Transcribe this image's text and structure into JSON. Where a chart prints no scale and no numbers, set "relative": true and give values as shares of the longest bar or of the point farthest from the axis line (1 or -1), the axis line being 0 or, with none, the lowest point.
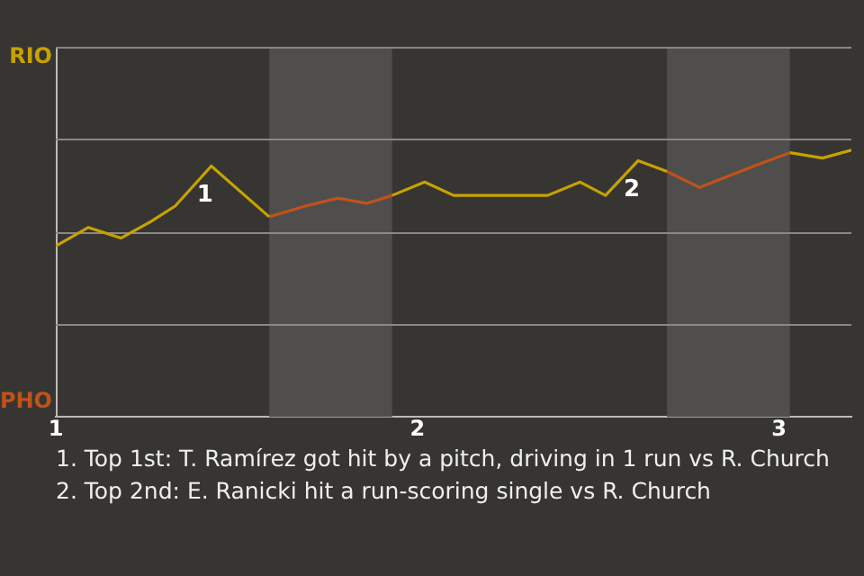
{
  "chart_data": {
    "type": "line",
    "relative": true,
    "x": [
      1,
      1.09,
      1.18,
      1.26,
      1.33,
      1.43,
      1.59,
      1.69,
      1.78,
      1.86,
      1.93,
      2.02,
      2.1,
      2.36,
      2.45,
      2.52,
      2.61,
      2.69,
      2.78,
      2.95,
      3.03,
      3.12,
      3.2
    ],
    "series": [
      {
        "color": "#c7a200",
        "values": [
          0.64,
          0.71,
          0.67,
          0.73,
          0.79,
          0.94,
          0.75,
          null,
          null,
          null,
          0.83,
          0.88,
          0.83,
          0.83,
          0.88,
          0.83,
          0.96,
          0.92,
          null,
          null,
          0.99,
          0.97,
          1
        ]
      },
      {
        "color": "#c0521b",
        "values": [
          null,
          null,
          null,
          null,
          null,
          null,
          0.75,
          0.79,
          0.82,
          0.8,
          0.83,
          null,
          null,
          null,
          null,
          null,
          null,
          0.92,
          0.86,
          0.95,
          0.99,
          null,
          null
        ]
      }
    ],
    "xlim": [
      1,
      3.2
    ],
    "xticks": [
      1,
      2,
      3
    ],
    "bands": [
      {
        "axis": "x",
        "from": 1.59,
        "to": 1.93,
        "color": "#4f4e4c"
      },
      {
        "axis": "x",
        "from": 2.69,
        "to": 3.03,
        "color": "#4f4e4c"
      }
    ],
    "ref_lines": [
      {
        "axis": "y",
        "value": 0.35,
        "color": "#8a8886"
      },
      {
        "axis": "y",
        "value": 0.69,
        "color": "#8a8886"
      },
      {
        "axis": "y",
        "value": 1.04,
        "color": "#8a8886"
      }
    ],
    "legend": false,
    "marker": "none",
    "line_style": "solid",
    "annotations": [
      "RIO",
      "PHO",
      {
        "text": "1",
        "x": 1.43,
        "y": 0.94
      },
      {
        "text": "2",
        "x": 2.61,
        "y": 0.96
      },
      "1. Top 1st: T. Ramírez got hit by a pitch, driving in 1 run vs R. Church",
      "2. Top 2nd: E. Ranicki hit a run-scoring single vs R. Church"
    ]
  }
}
